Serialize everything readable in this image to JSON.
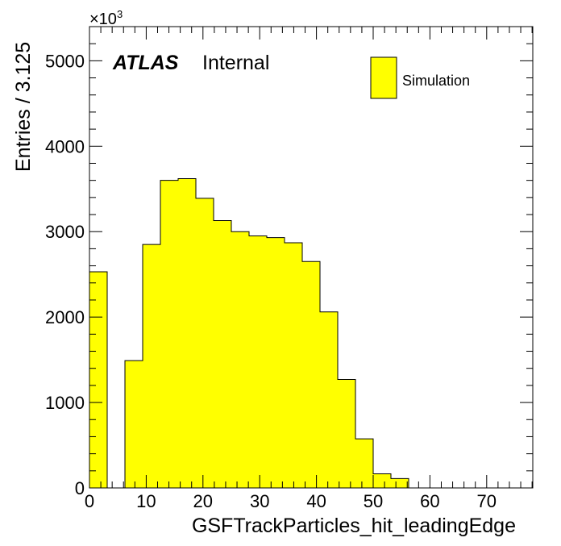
{
  "chart_data": {
    "type": "bar",
    "histogram": true,
    "bin_width": 3.125,
    "bin_edges": [
      0,
      3.125,
      6.25,
      9.375,
      12.5,
      15.625,
      18.75,
      21.875,
      25,
      28.125,
      31.25,
      34.375,
      37.5,
      40.625,
      43.75,
      46.875,
      50,
      53.125,
      56.25,
      59.375,
      62.5,
      65.625,
      68.75,
      71.875,
      75,
      78.125
    ],
    "values": [
      2530,
      0,
      1490,
      2850,
      3600,
      3620,
      3390,
      3130,
      3000,
      2950,
      2930,
      2870,
      2650,
      2060,
      1270,
      575,
      165,
      110,
      0,
      0,
      0,
      0,
      0,
      0,
      0
    ],
    "xlim": [
      0,
      78.125
    ],
    "ylim": [
      0,
      5400
    ],
    "x_ticks": [
      0,
      10,
      20,
      30,
      40,
      50,
      60,
      70
    ],
    "x_tick_labels": [
      "0",
      "10",
      "20",
      "30",
      "40",
      "50",
      "60",
      "70"
    ],
    "y_ticks": [
      0,
      1000,
      2000,
      3000,
      4000,
      5000
    ],
    "y_tick_labels": [
      "0",
      "1000",
      "2000",
      "3000",
      "4000",
      "5000"
    ],
    "xlabel": "GSFTrackParticles_hit_leadingEdge",
    "ylabel": "Entries / 3.125",
    "y_multiplier_base": "×10",
    "y_multiplier_exp": "3",
    "atlas_label": "ATLAS",
    "atlas_sublabel": "Internal",
    "legend": {
      "entries": [
        "Simulation"
      ],
      "placement": "top-right"
    },
    "colors": {
      "fill": "#ffff00",
      "line": "#000000"
    },
    "grid": false
  }
}
